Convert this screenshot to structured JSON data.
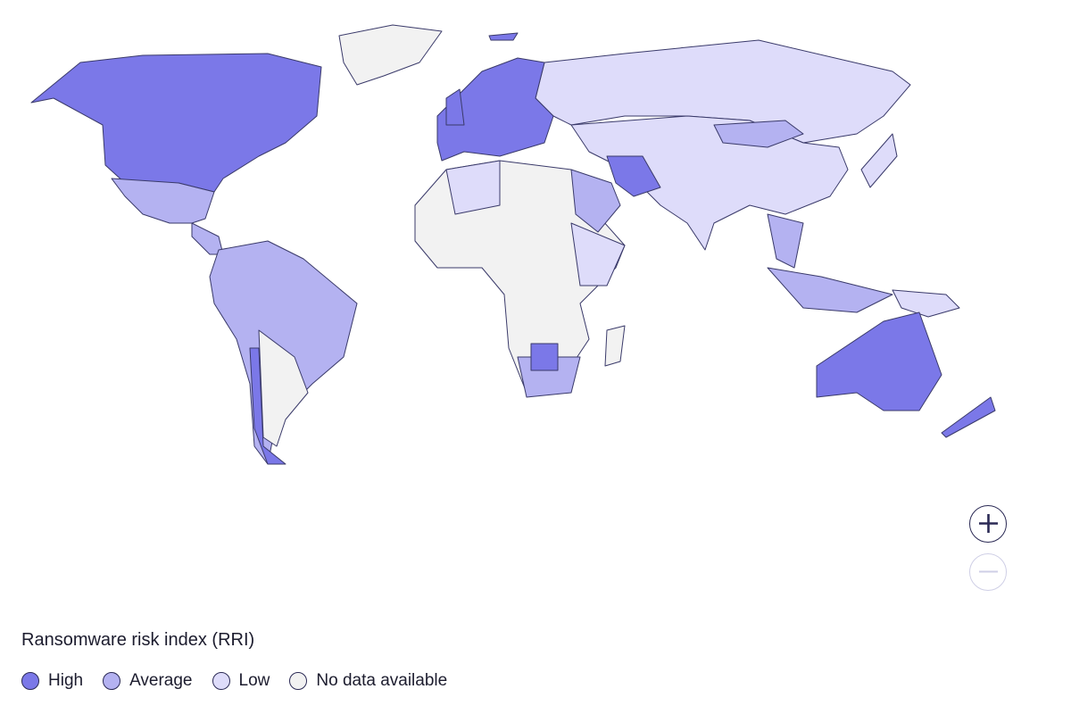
{
  "legend": {
    "title": "Ransomware risk index (RRI)",
    "items": [
      {
        "label": "High",
        "color": "#7b78e8"
      },
      {
        "label": "Average",
        "color": "#b4b2f1"
      },
      {
        "label": "Low",
        "color": "#dedcfa"
      },
      {
        "label": "No data available",
        "color": "#f2f2f2"
      }
    ]
  }
}
